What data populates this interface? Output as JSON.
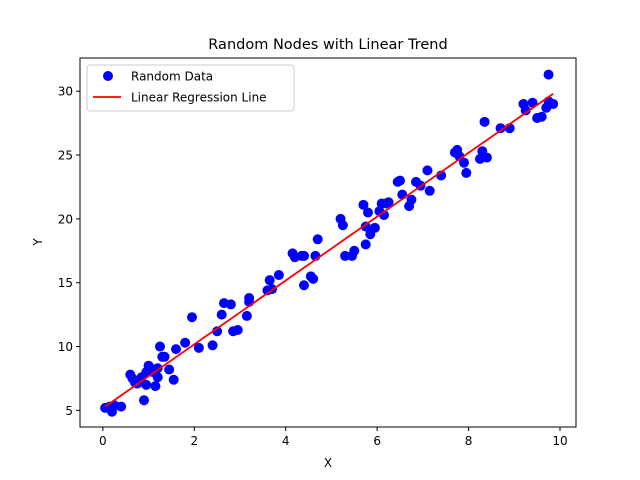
{
  "chart_data": {
    "type": "scatter",
    "title": "Random Nodes with Linear Trend",
    "xlabel": "X",
    "ylabel": "Y",
    "xlim": [
      -0.5,
      10.35
    ],
    "ylim": [
      3.7,
      32.6
    ],
    "xticks": [
      0,
      2,
      4,
      6,
      8,
      10
    ],
    "yticks": [
      5,
      10,
      15,
      20,
      25,
      30
    ],
    "xtick_labels": [
      "0",
      "2",
      "4",
      "6",
      "8",
      "10"
    ],
    "ytick_labels": [
      "5",
      "10",
      "15",
      "20",
      "25",
      "30"
    ],
    "grid": false,
    "legend_position": "top-left",
    "series": [
      {
        "name": "Random Data",
        "kind": "scatter",
        "color": "#0000ff",
        "x": [
          0.05,
          0.15,
          0.2,
          0.25,
          0.4,
          0.6,
          0.65,
          0.7,
          0.75,
          0.85,
          0.9,
          0.95,
          0.95,
          1.0,
          1.05,
          1.1,
          1.15,
          1.2,
          1.2,
          1.25,
          1.3,
          1.35,
          1.45,
          1.55,
          1.6,
          1.8,
          1.95,
          2.1,
          2.4,
          2.5,
          2.6,
          2.65,
          2.8,
          2.85,
          2.95,
          3.15,
          3.2,
          3.2,
          3.6,
          3.65,
          3.7,
          3.85,
          4.15,
          4.2,
          4.35,
          4.4,
          4.4,
          4.55,
          4.6,
          4.65,
          4.7,
          5.2,
          5.25,
          5.3,
          5.45,
          5.5,
          5.7,
          5.75,
          5.75,
          5.8,
          5.85,
          5.95,
          6.05,
          6.1,
          6.15,
          6.2,
          6.25,
          6.45,
          6.5,
          6.55,
          6.7,
          6.75,
          6.85,
          6.95,
          7.1,
          7.15,
          7.4,
          7.7,
          7.75,
          7.8,
          7.9,
          7.95,
          8.25,
          8.3,
          8.35,
          8.4,
          8.7,
          8.9,
          9.2,
          9.25,
          9.4,
          9.5,
          9.6,
          9.7,
          9.75,
          9.75,
          9.85
        ],
        "y": [
          5.2,
          5.3,
          4.9,
          5.4,
          5.3,
          7.8,
          7.5,
          7.2,
          7.1,
          7.6,
          5.8,
          7.0,
          8.0,
          8.5,
          8.3,
          8.0,
          6.9,
          7.6,
          8.3,
          10.0,
          9.2,
          9.2,
          8.2,
          7.4,
          9.8,
          10.3,
          12.3,
          9.9,
          10.1,
          11.2,
          12.5,
          13.4,
          13.3,
          11.2,
          11.3,
          12.4,
          13.5,
          13.8,
          14.4,
          15.2,
          14.5,
          15.6,
          17.3,
          17.0,
          17.1,
          14.8,
          17.1,
          15.5,
          15.3,
          17.1,
          18.4,
          20.0,
          19.5,
          17.1,
          17.1,
          17.5,
          21.1,
          18.0,
          19.4,
          20.5,
          18.8,
          19.3,
          20.6,
          21.2,
          20.3,
          21.2,
          21.3,
          22.9,
          23.0,
          21.9,
          21.0,
          21.5,
          22.9,
          22.6,
          23.8,
          22.2,
          23.4,
          25.2,
          25.4,
          24.9,
          24.4,
          23.6,
          24.7,
          25.3,
          27.6,
          24.8,
          27.1,
          27.1,
          29.0,
          28.5,
          29.1,
          27.9,
          28.0,
          28.7,
          31.3,
          29.2,
          29.0
        ]
      },
      {
        "name": "Linear Regression Line",
        "kind": "line",
        "color": "#ff0000",
        "x": [
          0.05,
          9.85
        ],
        "y": [
          5.3,
          29.8
        ]
      }
    ]
  }
}
